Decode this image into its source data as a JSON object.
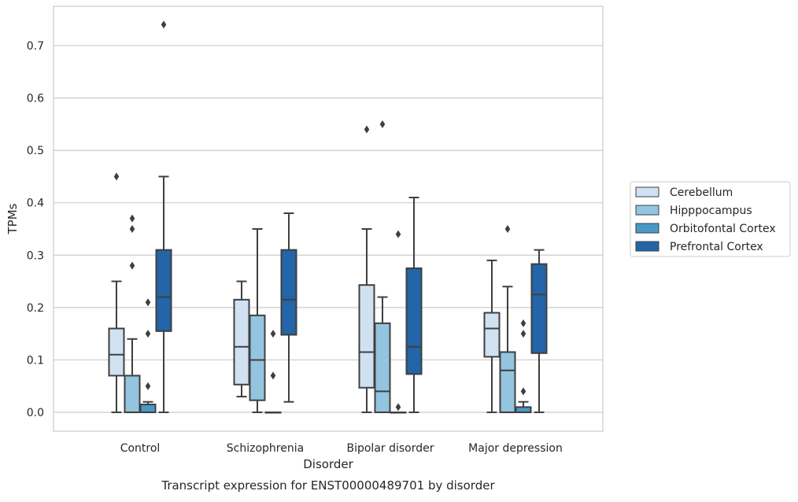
{
  "chart_data": {
    "type": "box",
    "title": "",
    "caption": "Transcript expression for ENST00000489701 by disorder",
    "xlabel": "Disorder",
    "ylabel": "TPMs",
    "ylim": [
      -0.036,
      0.775
    ],
    "yticks": [
      0.0,
      0.1,
      0.2,
      0.3,
      0.4,
      0.5,
      0.6,
      0.7
    ],
    "ytick_labels": [
      "0.0",
      "0.1",
      "0.2",
      "0.3",
      "0.4",
      "0.5",
      "0.6",
      "0.7"
    ],
    "categories": [
      "Control",
      "Schizophrenia",
      "Bipolar disorder",
      "Major depression"
    ],
    "grid": "horizontal",
    "legend_placement": "right",
    "series": [
      {
        "name": "Cerebellum",
        "color": "#d0e1f2",
        "boxes": [
          {
            "whisker_low": 0.0,
            "q1": 0.07,
            "median": 0.11,
            "q3": 0.16,
            "whisker_high": 0.25,
            "outliers": [
              0.45
            ]
          },
          {
            "whisker_low": 0.03,
            "q1": 0.053,
            "median": 0.125,
            "q3": 0.215,
            "whisker_high": 0.25,
            "outliers": []
          },
          {
            "whisker_low": 0.0,
            "q1": 0.047,
            "median": 0.115,
            "q3": 0.243,
            "whisker_high": 0.35,
            "outliers": [
              0.54
            ]
          },
          {
            "whisker_low": 0.0,
            "q1": 0.106,
            "median": 0.16,
            "q3": 0.19,
            "whisker_high": 0.29,
            "outliers": []
          }
        ]
      },
      {
        "name": "Hipppocampus",
        "color": "#94c4df",
        "boxes": [
          {
            "whisker_low": 0.0,
            "q1": 0.0,
            "median": 0.0,
            "q3": 0.07,
            "whisker_high": 0.14,
            "outliers": [
              0.28,
              0.35,
              0.37
            ]
          },
          {
            "whisker_low": 0.0,
            "q1": 0.023,
            "median": 0.1,
            "q3": 0.185,
            "whisker_high": 0.35,
            "outliers": []
          },
          {
            "whisker_low": 0.0,
            "q1": 0.0,
            "median": 0.04,
            "q3": 0.17,
            "whisker_high": 0.22,
            "outliers": [
              0.55
            ]
          },
          {
            "whisker_low": 0.0,
            "q1": 0.0,
            "median": 0.08,
            "q3": 0.115,
            "whisker_high": 0.24,
            "outliers": [
              0.35
            ]
          }
        ]
      },
      {
        "name": "Orbitofontal Cortex",
        "color": "#4a98c9",
        "boxes": [
          {
            "whisker_low": 0.0,
            "q1": 0.0,
            "median": 0.0,
            "q3": 0.015,
            "whisker_high": 0.02,
            "outliers": [
              0.05,
              0.15,
              0.21
            ]
          },
          {
            "whisker_low": 0.0,
            "q1": 0.0,
            "median": 0.0,
            "q3": 0.0,
            "whisker_high": 0.0,
            "outliers": [
              0.07,
              0.15
            ]
          },
          {
            "whisker_low": 0.0,
            "q1": 0.0,
            "median": 0.0,
            "q3": 0.0,
            "whisker_high": 0.0,
            "outliers": [
              0.01,
              0.34
            ]
          },
          {
            "whisker_low": 0.0,
            "q1": 0.0,
            "median": 0.0,
            "q3": 0.01,
            "whisker_high": 0.02,
            "outliers": [
              0.04,
              0.15,
              0.17
            ]
          }
        ]
      },
      {
        "name": "Prefrontal Cortex",
        "color": "#2464a8",
        "boxes": [
          {
            "whisker_low": 0.0,
            "q1": 0.155,
            "median": 0.22,
            "q3": 0.31,
            "whisker_high": 0.45,
            "outliers": [
              0.74
            ]
          },
          {
            "whisker_low": 0.02,
            "q1": 0.148,
            "median": 0.215,
            "q3": 0.31,
            "whisker_high": 0.38,
            "outliers": []
          },
          {
            "whisker_low": 0.0,
            "q1": 0.073,
            "median": 0.125,
            "q3": 0.275,
            "whisker_high": 0.41,
            "outliers": []
          },
          {
            "whisker_low": 0.0,
            "q1": 0.113,
            "median": 0.225,
            "q3": 0.283,
            "whisker_high": 0.31,
            "outliers": []
          }
        ]
      }
    ]
  }
}
